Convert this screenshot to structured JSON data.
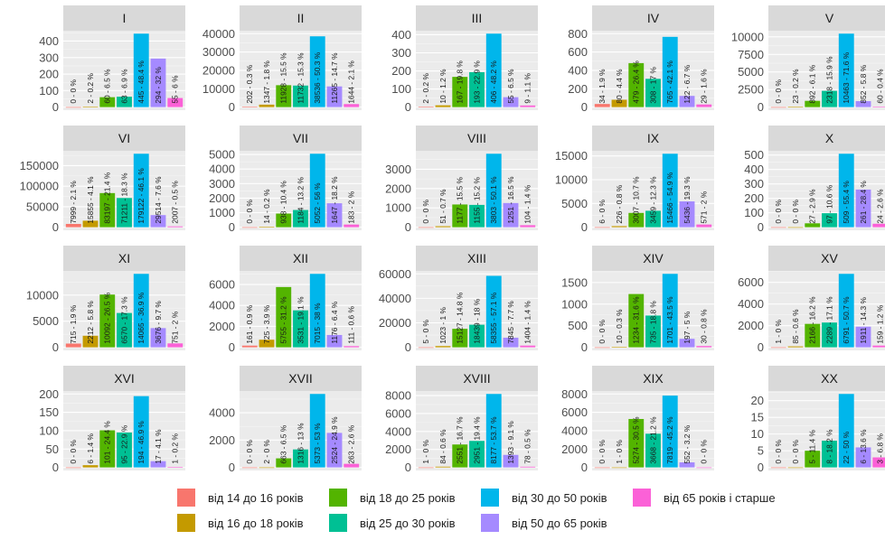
{
  "colors": [
    "#F8766D",
    "#C49A00",
    "#53B400",
    "#00C094",
    "#00B6EB",
    "#A58AFF",
    "#FB61D7"
  ],
  "legend": {
    "items": [
      "від 14 до 16 років",
      "від 16 до 18 років",
      "від 18 до 25 років",
      "від 25 до 30 років",
      "від 30 до 50 років",
      "від 50 до 65 років",
      "від 65 років і старше"
    ]
  },
  "chart_data": {
    "type": "bar",
    "layout": "facet-grid",
    "grid": true,
    "legend_position": "bottom",
    "categories": [
      "від 14 до 16 років",
      "від 16 до 18 років",
      "від 18 до 25 років",
      "від 25 до 30 років",
      "від 30 до 50 років",
      "від 50 до 65 років",
      "від 65 років і старше"
    ],
    "panels": [
      {
        "title": "I",
        "ticks": [
          0,
          100,
          200,
          300,
          400
        ],
        "values": [
          0,
          2,
          60,
          63,
          445,
          294,
          55
        ],
        "labels": [
          "0 - 0 %",
          "2 - 0.2 %",
          "60 - 6.5 %",
          "63 - 6.9 %",
          "445 - 48.4 %",
          "294 - 32 %",
          "55 - 6 %"
        ]
      },
      {
        "title": "II",
        "ticks": [
          0,
          10000,
          20000,
          30000,
          40000
        ],
        "values": [
          202,
          1347,
          11928,
          11732,
          38536,
          11265,
          1644
        ],
        "labels": [
          "202 - 0.3 %",
          "1347 - 1.8 %",
          "11928 - 15.5 %",
          "11732 - 15.3 %",
          "38536 - 50.3 %",
          "11265 - 14.7 %",
          "1644 - 2.1 %"
        ]
      },
      {
        "title": "III",
        "ticks": [
          0,
          100,
          200,
          300,
          400
        ],
        "values": [
          2,
          10,
          167,
          193,
          406,
          55,
          9
        ],
        "labels": [
          "2 - 0.2 %",
          "10 - 1.2 %",
          "167 - 19.8 %",
          "193 - 22.9 %",
          "406 - 48.2 %",
          "55 - 6.5 %",
          "9 - 1.1 %"
        ]
      },
      {
        "title": "IV",
        "ticks": [
          0,
          200,
          400,
          600,
          800
        ],
        "values": [
          34,
          80,
          479,
          308,
          765,
          122,
          29
        ],
        "labels": [
          "34 - 1.9 %",
          "80 - 4.4 %",
          "479 - 26.4 %",
          "308 - 17 %",
          "765 - 42.1 %",
          "122 - 6.7 %",
          "29 - 1.6 %"
        ]
      },
      {
        "title": "V",
        "ticks": [
          0,
          2500,
          5000,
          7500,
          10000
        ],
        "values": [
          0,
          23,
          892,
          2318,
          10463,
          852,
          60
        ],
        "labels": [
          "0 - 0 %",
          "23 - 0.2 %",
          "892 - 6.1 %",
          "2318 - 15.9 %",
          "10463 - 71.6 %",
          "852 - 5.8 %",
          "60 - 0.4 %"
        ]
      },
      {
        "title": "VI",
        "ticks": [
          0,
          50000,
          100000,
          150000
        ],
        "values": [
          7999,
          15855,
          83197,
          71211,
          179122,
          29514,
          2007
        ],
        "labels": [
          "7999 - 2.1 %",
          "15855 - 4.1 %",
          "83197 - 21.4 %",
          "71211 - 18.3 %",
          "179122 - 46.1 %",
          "29514 - 7.6 %",
          "2007 - 0.5 %"
        ]
      },
      {
        "title": "VII",
        "ticks": [
          0,
          1000,
          2000,
          3000,
          4000,
          5000
        ],
        "values": [
          0,
          14,
          938,
          1184,
          5052,
          1647,
          183
        ],
        "labels": [
          "0 - 0 %",
          "14 - 0.2 %",
          "938 - 10.4 %",
          "1184 - 13.2 %",
          "5052 - 56 %",
          "1647 - 18.2 %",
          "183 - 2 %"
        ]
      },
      {
        "title": "VIII",
        "ticks": [
          0,
          1000,
          2000,
          3000
        ],
        "values": [
          0,
          51,
          1177,
          1155,
          3803,
          1251,
          104
        ],
        "labels": [
          "0 - 0 %",
          "51 - 0.7 %",
          "1177 - 15.5 %",
          "1155 - 15.2 %",
          "3803 - 50.1 %",
          "1251 - 16.5 %",
          "104 - 1.4 %"
        ]
      },
      {
        "title": "IX",
        "ticks": [
          0,
          5000,
          10000,
          15000
        ],
        "values": [
          6,
          226,
          3007,
          3459,
          15466,
          5436,
          571
        ],
        "labels": [
          "6 - 0 %",
          "226 - 0.8 %",
          "3007 - 10.7 %",
          "3459 - 12.3 %",
          "15466 - 54.9 %",
          "5436 - 19.3 %",
          "571 - 2 %"
        ]
      },
      {
        "title": "X",
        "ticks": [
          0,
          100,
          200,
          300,
          400,
          500
        ],
        "values": [
          0,
          0,
          27,
          97,
          509,
          261,
          24
        ],
        "labels": [
          "0 - 0 %",
          "0 - 0 %",
          "27 - 2.9 %",
          "97 - 10.6 %",
          "509 - 55.4 %",
          "261 - 28.4 %",
          "24 - 2.6 %"
        ]
      },
      {
        "title": "XI",
        "ticks": [
          0,
          5000,
          10000
        ],
        "values": [
          715,
          2212,
          10092,
          6570,
          14065,
          3676,
          751
        ],
        "labels": [
          "715 - 1.9 %",
          "2212 - 5.8 %",
          "10092 - 26.5 %",
          "6570 - 17.3 %",
          "14065 - 36.9 %",
          "3676 - 9.7 %",
          "751 - 2 %"
        ]
      },
      {
        "title": "XII",
        "ticks": [
          0,
          2000,
          4000,
          6000
        ],
        "values": [
          161,
          725,
          5755,
          3531,
          7015,
          1176,
          111
        ],
        "labels": [
          "161 - 0.9 %",
          "725 - 3.9 %",
          "5755 - 31.2 %",
          "3531 - 19.1 %",
          "7015 - 38 %",
          "1176 - 6.4 %",
          "111 - 0.6 %"
        ]
      },
      {
        "title": "XIII",
        "ticks": [
          0,
          20000,
          40000,
          60000
        ],
        "values": [
          5,
          1023,
          15127,
          18439,
          58355,
          7845,
          1404
        ],
        "labels": [
          "5 - 0 %",
          "1023 - 1 %",
          "15127 - 14.8 %",
          "18439 - 18 %",
          "58355 - 57.1 %",
          "7845 - 7.7 %",
          "1404 - 1.4 %"
        ]
      },
      {
        "title": "XIV",
        "ticks": [
          0,
          500,
          1000,
          1500
        ],
        "values": [
          0,
          10,
          1234,
          735,
          1701,
          197,
          30
        ],
        "labels": [
          "0 - 0 %",
          "10 - 0.3 %",
          "1234 - 31.6 %",
          "735 - 18.8 %",
          "1701 - 43.5 %",
          "197 - 5 %",
          "30 - 0.8 %"
        ]
      },
      {
        "title": "XV",
        "ticks": [
          0,
          2000,
          4000,
          6000
        ],
        "values": [
          1,
          85,
          2166,
          2289,
          6791,
          1911,
          159
        ],
        "labels": [
          "1 - 0 %",
          "85 - 0.6 %",
          "2166 - 16.2 %",
          "2289 - 17.1 %",
          "6791 - 50.7 %",
          "1911 - 14.3 %",
          "159 - 1.2 %"
        ]
      },
      {
        "title": "XVI",
        "ticks": [
          0,
          50,
          100,
          150,
          200
        ],
        "values": [
          0,
          6,
          101,
          95,
          194,
          17,
          1
        ],
        "labels": [
          "0 - 0 %",
          "6 - 1.4 %",
          "101 - 24.4 %",
          "95 - 22.9 %",
          "194 - 46.9 %",
          "17 - 4.1 %",
          "1 - 0.2 %"
        ]
      },
      {
        "title": "XVII",
        "ticks": [
          0,
          2000,
          4000
        ],
        "values": [
          0,
          2,
          663,
          1316,
          5373,
          2524,
          263
        ],
        "labels": [
          "0 - 0 %",
          "2 - 0 %",
          "663 - 6.5 %",
          "1316 - 13 %",
          "5373 - 53 %",
          "2524 - 24.9 %",
          "263 - 2.6 %"
        ]
      },
      {
        "title": "XVIII",
        "ticks": [
          0,
          2000,
          4000,
          6000,
          8000
        ],
        "values": [
          1,
          84,
          2551,
          2951,
          8177,
          1393,
          78
        ],
        "labels": [
          "1 - 0 %",
          "84 - 0.6 %",
          "2551 - 16.7 %",
          "2951 - 19.4 %",
          "8177 - 53.7 %",
          "1393 - 9.1 %",
          "78 - 0.5 %"
        ]
      },
      {
        "title": "XIX",
        "ticks": [
          0,
          2000,
          4000,
          6000,
          8000
        ],
        "values": [
          0,
          1,
          5274,
          3668,
          7819,
          552,
          0
        ],
        "labels": [
          "0 - 0 %",
          "1 - 0 %",
          "5274 - 30.5 %",
          "3668 - 21.2 %",
          "7819 - 45.2 %",
          "552 - 3.2 %",
          "0 - 0 %"
        ]
      },
      {
        "title": "XX",
        "ticks": [
          0,
          5,
          10,
          15,
          20
        ],
        "values": [
          0,
          0,
          5,
          8,
          22,
          6,
          3
        ],
        "labels": [
          "0 - 0 %",
          "0 - 0 %",
          "5 - 11.4 %",
          "8 - 18.2 %",
          "22 - 50 %",
          "6 - 13.6 %",
          "3 - 6.8 %"
        ]
      }
    ]
  }
}
